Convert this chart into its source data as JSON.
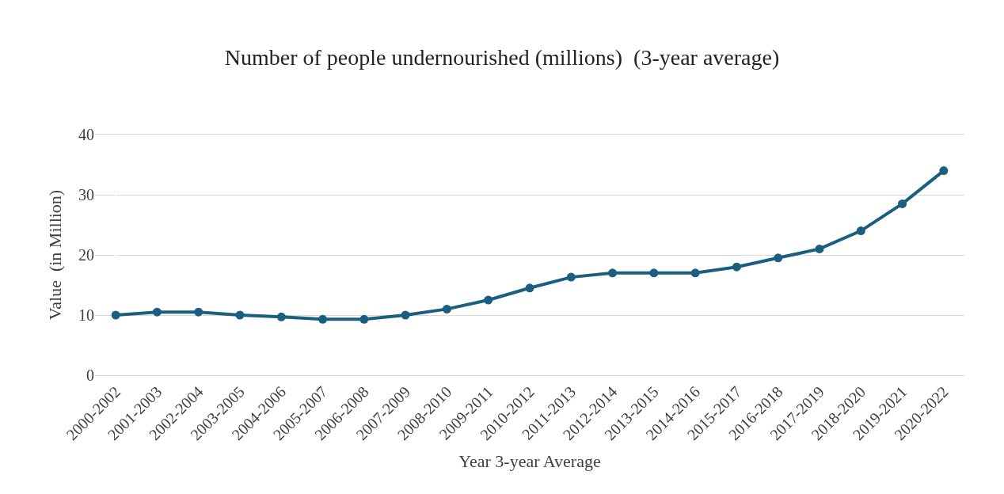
{
  "chart_data": {
    "type": "line",
    "title": "Number of people undernourished (millions)  (3-year average)",
    "xlabel": "Year 3-year Average",
    "ylabel": "Value  (in Million)",
    "categories": [
      "2000-2002",
      "2001-2003",
      "2002-2004",
      "2003-2005",
      "2004-2006",
      "2005-2007",
      "2006-2008",
      "2007-2009",
      "2008-2010",
      "2009-2011",
      "2010-2012",
      "2011-2013",
      "2012-2014",
      "2013-2015",
      "2014-2016",
      "2015-2017",
      "2016-2018",
      "2017-2019",
      "2018-2020",
      "2019-2021",
      "2020-2022"
    ],
    "series": [
      {
        "color": "#1a5f7f",
        "values": [
          10,
          10.5,
          10.5,
          10,
          9.7,
          9.3,
          9.3,
          10,
          11,
          12.5,
          14.5,
          16.3,
          17,
          17,
          17,
          18,
          19.5,
          21,
          24,
          28.5,
          34
        ]
      }
    ],
    "ylim": [
      0,
      40
    ],
    "yticks": [
      0,
      10,
      20,
      30,
      40
    ],
    "grid": "y",
    "marker": "circle",
    "line_style": "solid"
  }
}
